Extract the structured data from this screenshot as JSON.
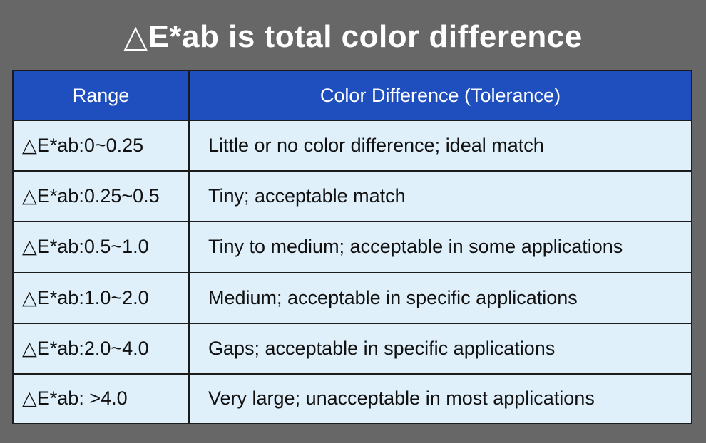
{
  "title": "△E*ab is total color difference",
  "table": {
    "headers": [
      "Range",
      "Color Difference (Tolerance)"
    ],
    "rows": [
      [
        "△E*ab:0~0.25",
        "Little or no color difference; ideal match"
      ],
      [
        "△E*ab:0.25~0.5",
        "Tiny; acceptable match"
      ],
      [
        "△E*ab:0.5~1.0",
        "Tiny to medium; acceptable in some applications"
      ],
      [
        "△E*ab:1.0~2.0",
        "Medium; acceptable in specific applications"
      ],
      [
        "△E*ab:2.0~4.0",
        "Gaps; acceptable in specific applications"
      ],
      [
        "△E*ab: >4.0",
        "Very large; unacceptable in most applications"
      ]
    ]
  },
  "colors": {
    "background": "#676767",
    "header": "#1f4fbf",
    "row": "#dff0fb",
    "border": "#1b1b1b"
  }
}
